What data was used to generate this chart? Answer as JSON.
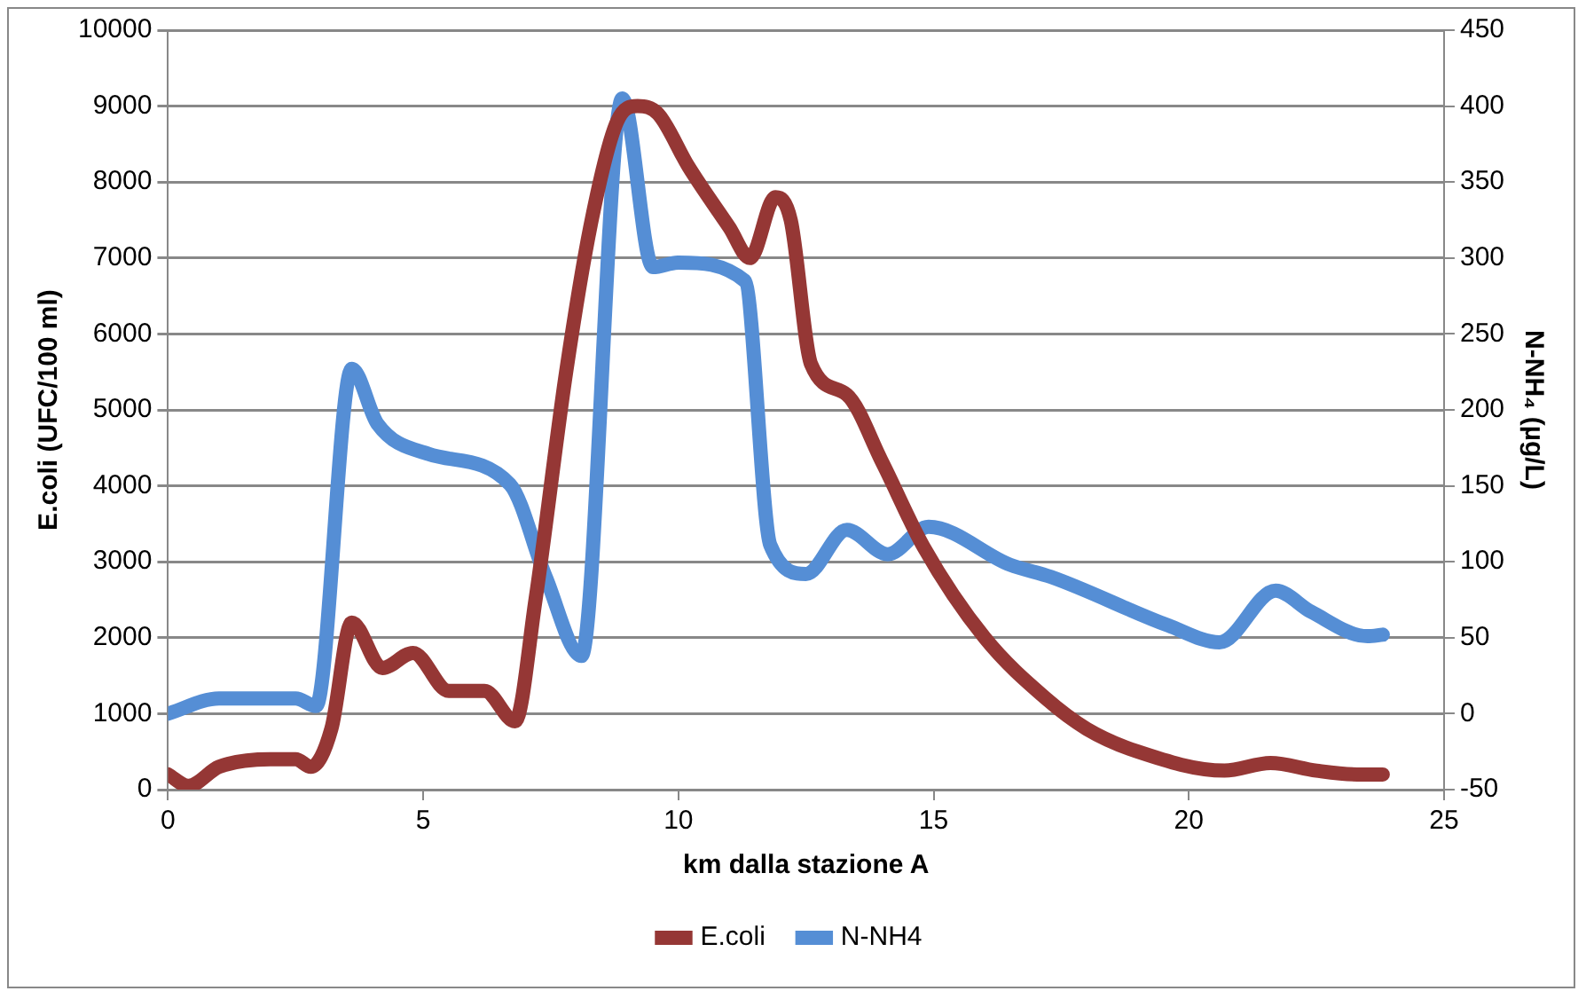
{
  "chart_data": {
    "type": "line",
    "xlabel": "km dalla stazione A",
    "ylabel": "E.coli (UFC/100 ml)",
    "y2label": "N-NH₄ (µg/L)",
    "xlim": [
      0,
      25
    ],
    "xticks": [
      0,
      5,
      10,
      15,
      20,
      25
    ],
    "ylim": [
      0,
      10000
    ],
    "yticks": [
      0,
      1000,
      2000,
      3000,
      4000,
      5000,
      6000,
      7000,
      8000,
      9000,
      10000
    ],
    "y2lim": [
      -50,
      450
    ],
    "y2ticks": [
      -50,
      0,
      50,
      100,
      150,
      200,
      250,
      300,
      350,
      400,
      450
    ],
    "grid": "y",
    "legend": "bottom",
    "marker": "none",
    "line_style": "solid",
    "series": [
      {
        "name": "E.coli",
        "color": "#953735",
        "x": [
          0,
          0.4,
          1,
          2,
          2.5,
          2.8,
          3.2,
          3.6,
          4.2,
          4.8,
          5.5,
          6.2,
          6.8,
          7.2,
          7.8,
          8.3,
          8.8,
          9.2,
          9.6,
          10.2,
          11,
          11.4,
          11.9,
          12.2,
          12.6,
          13.3,
          14,
          14.8,
          16,
          17.2,
          18,
          19,
          20.7,
          21.6,
          22.5,
          23.3,
          23.8
        ],
        "values": [
          200,
          50,
          300,
          400,
          400,
          300,
          800,
          2200,
          1600,
          1800,
          1300,
          1300,
          900,
          2500,
          5500,
          7500,
          8800,
          9000,
          8900,
          8200,
          7400,
          7000,
          7800,
          7500,
          5600,
          5200,
          4300,
          3200,
          2000,
          1200,
          800,
          500,
          250,
          350,
          250,
          200,
          200
        ]
      },
      {
        "name": "N-NH4",
        "color": "#558ed5",
        "axis": "y2",
        "x": [
          0,
          1,
          2.5,
          2.9,
          3.6,
          4.1,
          5.1,
          6.7,
          7.4,
          8.1,
          8.9,
          9.5,
          10,
          11.3,
          11.8,
          12.5,
          13.3,
          14.1,
          14.9,
          16.5,
          17.3,
          19.6,
          20.6,
          21.7,
          22.4,
          23.5,
          23.8
        ],
        "values": [
          0,
          10,
          10,
          5,
          227,
          191,
          171,
          151,
          90,
          38,
          405,
          294,
          297,
          285,
          111,
          92,
          121,
          105,
          123,
          98,
          90,
          58,
          47,
          81,
          67,
          51,
          52
        ]
      }
    ]
  }
}
